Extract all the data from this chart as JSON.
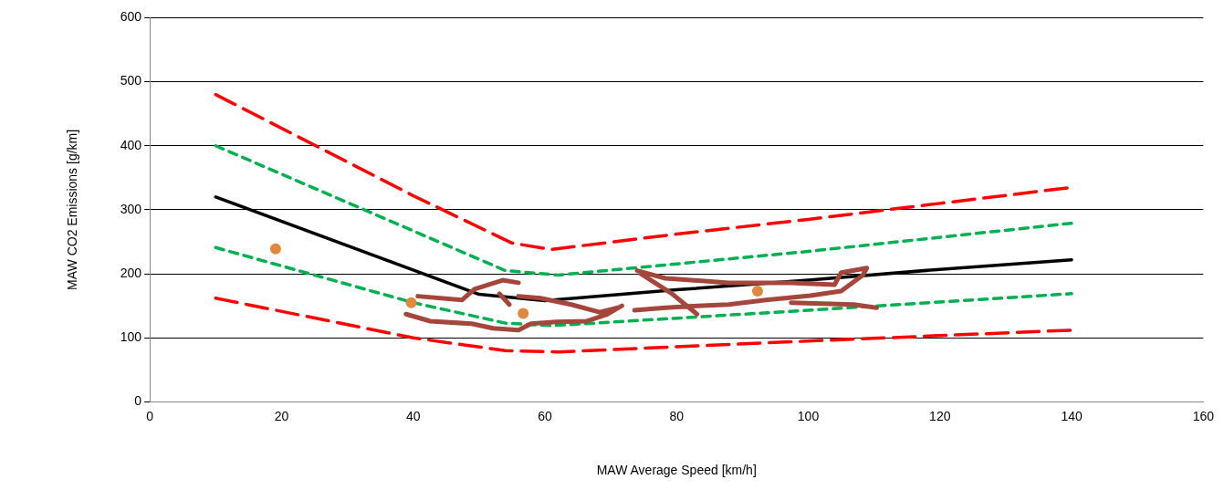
{
  "chart_data": {
    "type": "line",
    "xlabel": "MAW Average Speed [km/h]",
    "ylabel": "MAW CO2 Emissions [g/km]",
    "xlim": [
      0,
      160
    ],
    "xticks": [
      0,
      20,
      40,
      60,
      80,
      100,
      120,
      140,
      160
    ],
    "ylim": [
      0,
      600
    ],
    "yticks": [
      0,
      100,
      200,
      300,
      400,
      500,
      600
    ],
    "grid": "y",
    "legend": false,
    "series": [
      {
        "color": "#ff0000",
        "line_style": "dashed",
        "marker": "none",
        "x": [
          10,
          40,
          55,
          61,
          80,
          100,
          120,
          140
        ],
        "values": [
          480,
          322,
          248,
          238,
          262,
          285,
          310,
          335
        ]
      },
      {
        "color": "#00b050",
        "line_style": "dotted",
        "marker": "none",
        "x": [
          10,
          54,
          62,
          100,
          140
        ],
        "values": [
          400,
          205,
          198,
          235,
          279
        ]
      },
      {
        "color": "#000000",
        "line_style": "solid",
        "marker": "none",
        "x": [
          10,
          50,
          60,
          80,
          100,
          120,
          140
        ],
        "values": [
          320,
          168,
          158,
          175,
          190,
          207,
          222
        ]
      },
      {
        "color": "#00b050",
        "line_style": "dotted",
        "marker": "none",
        "x": [
          10,
          40,
          54,
          61,
          100,
          140
        ],
        "values": [
          241,
          155,
          123,
          119,
          143,
          169
        ]
      },
      {
        "color": "#ff0000",
        "line_style": "dashed",
        "marker": "none",
        "x": [
          10,
          40,
          54,
          62,
          100,
          140
        ],
        "values": [
          162,
          100,
          80,
          78,
          95,
          112
        ]
      },
      {
        "color": "#a5463c",
        "line_style": "solid",
        "marker": "none",
        "x": [
          38.9,
          42.6,
          48.9,
          52.1,
          56,
          57.9,
          61.7,
          66.4,
          69.3,
          71.7,
          null,
          40.7,
          47.4,
          49.3,
          53.6,
          56,
          null,
          53.1,
          54.6,
          null,
          56,
          59.3,
          64,
          68.3,
          71.1,
          null,
          74,
          78.3,
          87.9,
          97.4,
          104,
          105,
          108.9,
          108.3,
          105,
          100.3,
          93.6,
          87.9,
          83.1,
          78.3,
          73.6,
          null,
          74.6,
          79.3,
          83.1,
          null,
          97.4,
          106.9,
          110.4
        ],
        "values": [
          137,
          126,
          122,
          115,
          112,
          122,
          125,
          126,
          136,
          150,
          null,
          165,
          159,
          176,
          190,
          186,
          null,
          169,
          152,
          null,
          165,
          162,
          152,
          140,
          147,
          null,
          205,
          193,
          186,
          186,
          183,
          202,
          209,
          198,
          173,
          166,
          159,
          152,
          150,
          147,
          143,
          null,
          200,
          169,
          137,
          null,
          155,
          152,
          147
        ]
      },
      {
        "type": "scatter",
        "color": "#e0883c",
        "marker": "circle",
        "x": [
          19.1,
          39.7,
          56.7,
          92.3
        ],
        "values": [
          239,
          155,
          138,
          173
        ]
      }
    ]
  }
}
